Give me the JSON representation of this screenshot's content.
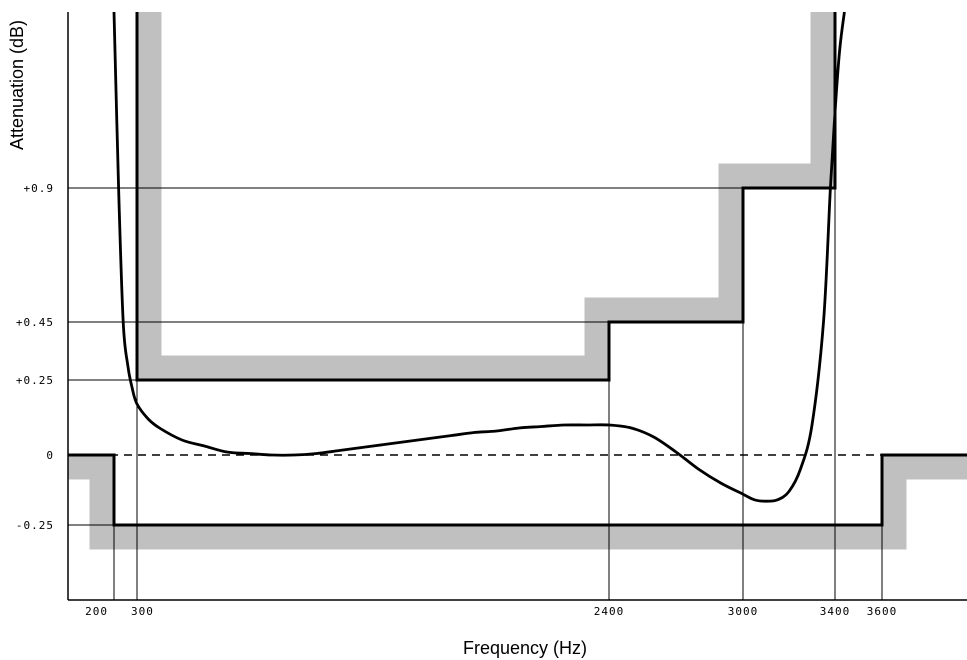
{
  "chart_data": {
    "type": "line",
    "xlabel": "Frequency (Hz)",
    "ylabel": "Attenuation (dB)",
    "x_ticks": [
      {
        "value": 200,
        "label": "200"
      },
      {
        "value": 300,
        "label": "300"
      },
      {
        "value": 2400,
        "label": "2400"
      },
      {
        "value": 3000,
        "label": "3000"
      },
      {
        "value": 3400,
        "label": "3400"
      },
      {
        "value": 3600,
        "label": "3600"
      }
    ],
    "y_ticks": [
      {
        "value": 0.9,
        "label": "+0.9"
      },
      {
        "value": 0.45,
        "label": "+0.45"
      },
      {
        "value": 0.25,
        "label": "+0.25"
      },
      {
        "value": 0,
        "label": "0"
      },
      {
        "value": -0.25,
        "label": "-0.25"
      }
    ],
    "upper_mask": {
      "x": [
        300,
        300,
        2400,
        2400,
        3000,
        3000,
        3400,
        3400
      ],
      "y": [
        1.6,
        0.25,
        0.25,
        0.45,
        0.45,
        0.9,
        0.9,
        1.6
      ]
    },
    "lower_mask": {
      "x": [
        -20,
        200,
        200,
        3600,
        3600,
        3990
      ],
      "y": [
        0,
        0,
        -0.25,
        -0.25,
        0,
        0
      ]
    },
    "response_curve": {
      "x": [
        200,
        220,
        240,
        260,
        280,
        300,
        350,
        400,
        500,
        600,
        700,
        800,
        900,
        1000,
        1100,
        1200,
        1300,
        1400,
        1500,
        1600,
        1700,
        1800,
        1900,
        2000,
        2100,
        2200,
        2300,
        2400,
        2500,
        2600,
        2700,
        2800,
        2900,
        3000,
        3050,
        3100,
        3150,
        3200,
        3250,
        3300,
        3350,
        3380,
        3400,
        3420,
        3440
      ],
      "y": [
        1.6,
        0.9,
        0.45,
        0.3,
        0.22,
        0.17,
        0.12,
        0.09,
        0.05,
        0.03,
        0.01,
        0.005,
        0.0,
        0.0,
        0.005,
        0.015,
        0.025,
        0.035,
        0.045,
        0.055,
        0.065,
        0.075,
        0.08,
        0.09,
        0.095,
        0.1,
        0.1,
        0.1,
        0.09,
        0.06,
        0.01,
        -0.05,
        -0.1,
        -0.14,
        -0.16,
        -0.165,
        -0.16,
        -0.13,
        -0.05,
        0.1,
        0.45,
        0.9,
        1.2,
        1.45,
        1.6
      ]
    },
    "reference_line": {
      "y": 0,
      "style": "dashed"
    },
    "xlim": [
      -20,
      3990
    ],
    "ylim": [
      -0.5,
      1.6
    ],
    "grid": false,
    "legend": "none"
  }
}
